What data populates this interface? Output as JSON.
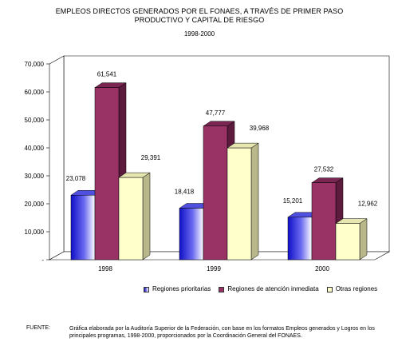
{
  "chart_data": {
    "type": "bar",
    "title_line1": "EMPLEOS DIRECTOS GENERADOS POR EL FONAES, A TRAVÉS DE PRIMER PASO",
    "title_line2": "PRODUCTIVO Y CAPITAL DE RIESGO",
    "subtitle": "1998-2000",
    "categories": [
      "1998",
      "1999",
      "2000"
    ],
    "series": [
      {
        "name": "Regiones prioritarias",
        "values": [
          23078,
          18418,
          15201
        ],
        "labels": [
          "23,078",
          "18,418",
          "15,201"
        ],
        "color": "#2b2bd8"
      },
      {
        "name": "Regiones de atención inmediata",
        "values": [
          61541,
          47777,
          27532
        ],
        "labels": [
          "61,541",
          "47,777",
          "27,532"
        ],
        "color": "#993366"
      },
      {
        "name": "Otras regiones",
        "values": [
          29391,
          39968,
          12962
        ],
        "labels": [
          "29,391",
          "39,968",
          "12,962"
        ],
        "color": "#ffffcc"
      }
    ],
    "yticks": [
      0,
      10000,
      20000,
      30000,
      40000,
      50000,
      60000,
      70000
    ],
    "ytick_labels": [
      "-",
      "10,000",
      "20,000",
      "30,000",
      "40,000",
      "50,000",
      "60,000",
      "70,000"
    ],
    "ylim": [
      0,
      70000
    ],
    "grid": false,
    "legend_position": "bottom",
    "style": "3d-column"
  },
  "source": {
    "label": "FUENTE:",
    "text": "Gráfica elaborada por la Auditoría Superior de la Federación, con base en los formatos Empleos generados y Logros en los principales programas, 1998-2000, proporcionados por la Coordinación General del FONAES."
  }
}
